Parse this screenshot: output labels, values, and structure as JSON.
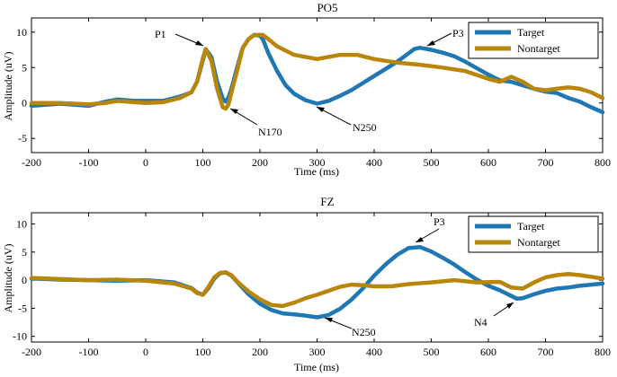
{
  "chart_data": [
    {
      "type": "line",
      "title": "PO5",
      "xlabel": "Time (ms)",
      "ylabel": "Amplitude (uV)",
      "xlim": [
        -200,
        800
      ],
      "ylim": [
        -7,
        12
      ],
      "xticks": [
        -200,
        -100,
        0,
        100,
        200,
        300,
        400,
        500,
        600,
        700,
        800
      ],
      "yticks": [
        -5,
        0,
        5,
        10
      ],
      "legend_position": "top-right",
      "series": [
        {
          "name": "Target",
          "color": "#1f77b4",
          "x": [
            -200,
            -150,
            -100,
            -70,
            -50,
            -20,
            0,
            30,
            60,
            80,
            90,
            100,
            105,
            115,
            125,
            135,
            140,
            145,
            150,
            160,
            170,
            180,
            190,
            200,
            205,
            215,
            230,
            245,
            260,
            280,
            300,
            320,
            340,
            360,
            380,
            400,
            420,
            440,
            460,
            470,
            480,
            500,
            520,
            540,
            560,
            580,
            600,
            620,
            640,
            660,
            680,
            700,
            720,
            740,
            760,
            780,
            800
          ],
          "y": [
            -0.4,
            -0.1,
            -0.4,
            0.2,
            0.5,
            0.3,
            0.3,
            0.3,
            0.9,
            1.5,
            3.0,
            6.0,
            7.6,
            6.5,
            3.0,
            0.6,
            0.2,
            0.8,
            2.0,
            5.0,
            7.8,
            9.0,
            9.6,
            9.5,
            9.0,
            7.0,
            4.5,
            2.5,
            1.3,
            0.4,
            -0.1,
            0.3,
            1.0,
            1.8,
            2.8,
            3.8,
            4.8,
            5.8,
            7.0,
            7.6,
            7.8,
            7.5,
            7.1,
            6.6,
            5.8,
            4.9,
            4.0,
            3.2,
            3.0,
            2.5,
            2.0,
            1.6,
            1.4,
            0.7,
            0.2,
            -0.6,
            -1.3
          ]
        },
        {
          "name": "Nontarget",
          "color": "#b8860b",
          "x": [
            -200,
            -150,
            -100,
            -70,
            -50,
            -20,
            0,
            30,
            60,
            80,
            90,
            100,
            105,
            115,
            125,
            135,
            140,
            145,
            150,
            160,
            170,
            180,
            190,
            200,
            205,
            215,
            230,
            260,
            300,
            340,
            370,
            400,
            440,
            480,
            520,
            560,
            600,
            620,
            640,
            660,
            680,
            700,
            720,
            740,
            760,
            780,
            800
          ],
          "y": [
            0.0,
            0.0,
            -0.2,
            0.0,
            0.3,
            0.1,
            0.0,
            0.1,
            0.7,
            1.5,
            3.0,
            6.3,
            7.6,
            6.0,
            2.0,
            -0.6,
            -0.8,
            -0.2,
            1.5,
            4.5,
            7.8,
            9.0,
            9.6,
            9.6,
            9.6,
            9.0,
            8.0,
            6.8,
            6.2,
            6.8,
            6.8,
            6.2,
            5.7,
            5.4,
            5.0,
            4.5,
            3.4,
            3.0,
            3.7,
            3.0,
            2.0,
            1.8,
            2.0,
            2.2,
            2.0,
            1.5,
            0.7
          ]
        }
      ],
      "annotations": [
        "P1",
        "N170",
        "N250",
        "P3"
      ]
    },
    {
      "type": "line",
      "title": "FZ",
      "xlabel": "Time (ms)",
      "ylabel": "Amplitude (uV)",
      "xlim": [
        -200,
        800
      ],
      "ylim": [
        -11,
        12
      ],
      "xticks": [
        -200,
        -100,
        0,
        100,
        200,
        300,
        400,
        500,
        600,
        700,
        800
      ],
      "yticks": [
        -10,
        -5,
        0,
        5,
        10
      ],
      "legend_position": "top-right",
      "series": [
        {
          "name": "Target",
          "color": "#1f77b4",
          "x": [
            -200,
            -150,
            -100,
            -50,
            0,
            50,
            80,
            90,
            100,
            110,
            120,
            130,
            140,
            150,
            160,
            170,
            180,
            200,
            220,
            240,
            260,
            280,
            300,
            320,
            340,
            360,
            380,
            400,
            420,
            440,
            460,
            480,
            500,
            520,
            540,
            560,
            580,
            600,
            620,
            640,
            650,
            660,
            680,
            700,
            720,
            740,
            760,
            780,
            800
          ],
          "y": [
            0.3,
            0.1,
            0.0,
            -0.1,
            0.0,
            -0.4,
            -1.4,
            -2.2,
            -2.6,
            -1.4,
            0.3,
            1.2,
            1.4,
            0.8,
            -0.3,
            -1.4,
            -2.5,
            -4.2,
            -5.3,
            -5.9,
            -6.1,
            -6.3,
            -6.6,
            -6.2,
            -5.1,
            -3.5,
            -1.5,
            0.8,
            2.8,
            4.5,
            5.7,
            5.9,
            5.1,
            4.0,
            2.8,
            1.4,
            0.1,
            -1.0,
            -1.8,
            -2.8,
            -3.3,
            -3.2,
            -2.5,
            -1.9,
            -1.5,
            -1.3,
            -1.0,
            -0.8,
            -0.6
          ]
        },
        {
          "name": "Nontarget",
          "color": "#b8860b",
          "x": [
            -200,
            -150,
            -100,
            -50,
            0,
            50,
            80,
            90,
            100,
            110,
            120,
            130,
            140,
            150,
            160,
            170,
            180,
            200,
            220,
            240,
            260,
            280,
            300,
            320,
            340,
            360,
            380,
            400,
            430,
            460,
            500,
            540,
            580,
            620,
            640,
            660,
            680,
            700,
            720,
            740,
            760,
            780,
            800
          ],
          "y": [
            0.4,
            0.2,
            0.0,
            0.1,
            -0.1,
            -0.6,
            -1.5,
            -2.3,
            -2.6,
            -1.2,
            0.5,
            1.3,
            1.4,
            0.9,
            -0.2,
            -1.1,
            -2.0,
            -3.4,
            -4.4,
            -4.6,
            -4.0,
            -3.2,
            -2.6,
            -1.9,
            -1.2,
            -0.8,
            -0.9,
            -1.1,
            -1.1,
            -0.7,
            -0.4,
            0.0,
            -0.4,
            -0.3,
            -1.3,
            -1.5,
            -0.4,
            0.5,
            0.9,
            1.1,
            0.9,
            0.6,
            0.3
          ]
        }
      ],
      "annotations": [
        "P3",
        "N250",
        "N4"
      ]
    }
  ]
}
